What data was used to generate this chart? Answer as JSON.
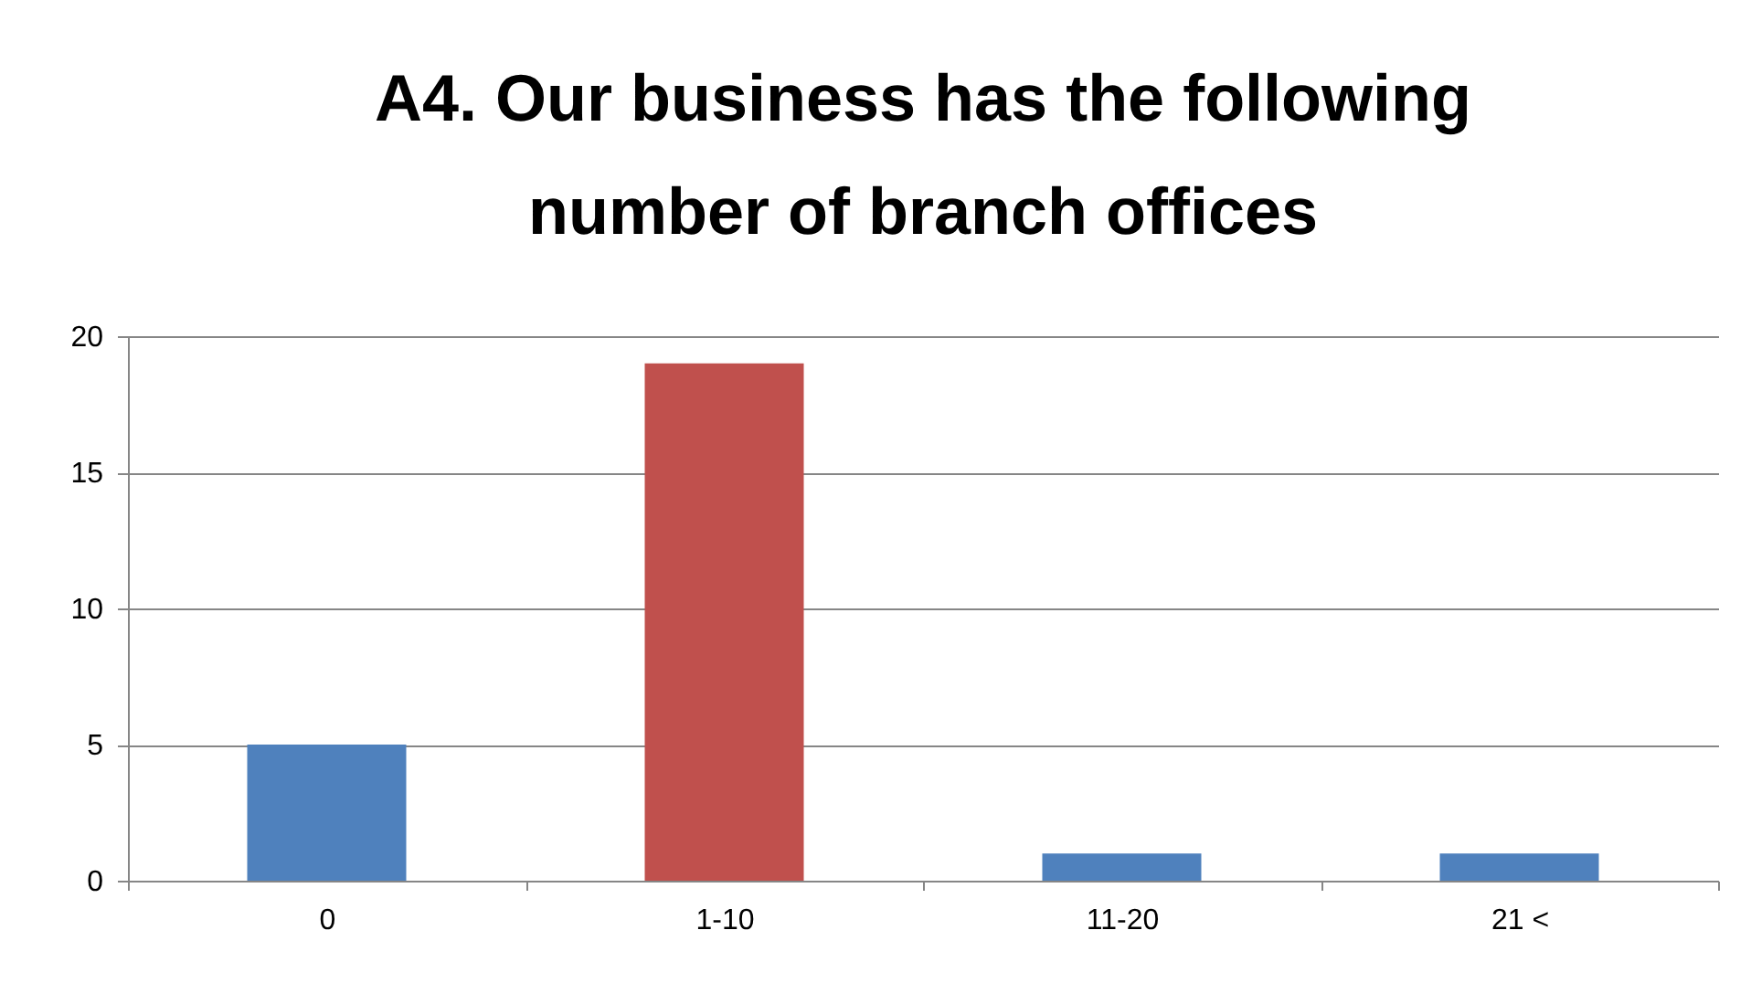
{
  "chart_data": {
    "type": "bar",
    "title": "A4. Our business has the following number of branch offices",
    "categories": [
      "0",
      "1-10",
      "11-20",
      "21 <"
    ],
    "values": [
      5,
      19,
      1,
      1
    ],
    "colors": [
      "#4f81bd",
      "#c0504d",
      "#4f81bd",
      "#4f81bd"
    ],
    "ylim": [
      0,
      20
    ],
    "yticks": [
      0,
      5,
      10,
      15,
      20
    ],
    "grid": "y"
  }
}
